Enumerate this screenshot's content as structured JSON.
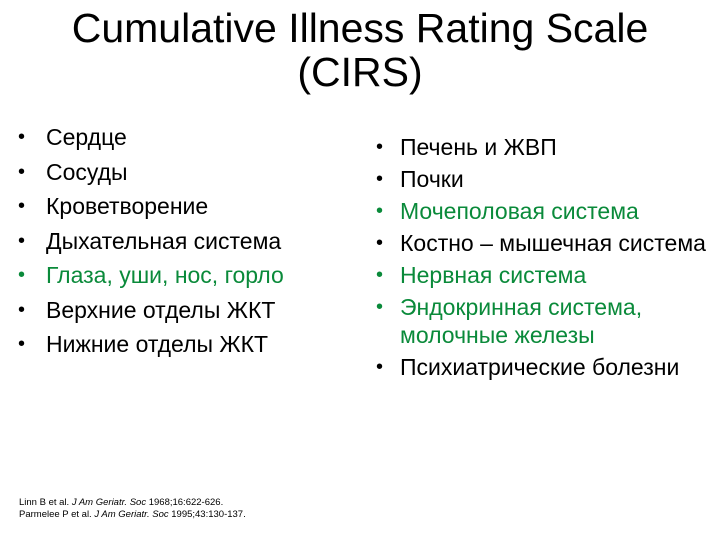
{
  "title": {
    "line1": "Cumulative Illness Rating Scale",
    "line2": "(CIRS)"
  },
  "bullet": "•",
  "left_items": [
    {
      "text": "Сердце"
    },
    {
      "text": "Сосуды"
    },
    {
      "text": "Кроветворение"
    },
    {
      "text": "Дыхательная система"
    },
    {
      "text": "Глаза, уши, нос, горло"
    },
    {
      "text": "Верхние отделы ЖКТ"
    },
    {
      "text": "Нижние отделы ЖКТ"
    }
  ],
  "right_items": [
    {
      "text": "Печень и ЖВП"
    },
    {
      "text": "Почки"
    },
    {
      "text": "Мочеполовая система"
    },
    {
      "text": "Костно – мышечная система"
    },
    {
      "text": "Нервная система"
    },
    {
      "text": "Эндокринная система, молочные железы"
    },
    {
      "text": "Психиатрические болезни"
    }
  ],
  "colors": {
    "text": "#000000",
    "green": "#0a8a3a"
  },
  "references": [
    {
      "authors": "Linn B et al.",
      "journal": "J Am Geriatr. Soc",
      "rest": "1968;16:622-626."
    },
    {
      "authors": "Parmelee P et al.",
      "journal": "J Am Geriatr. Soc",
      "rest": "1995;43:130-137."
    }
  ]
}
